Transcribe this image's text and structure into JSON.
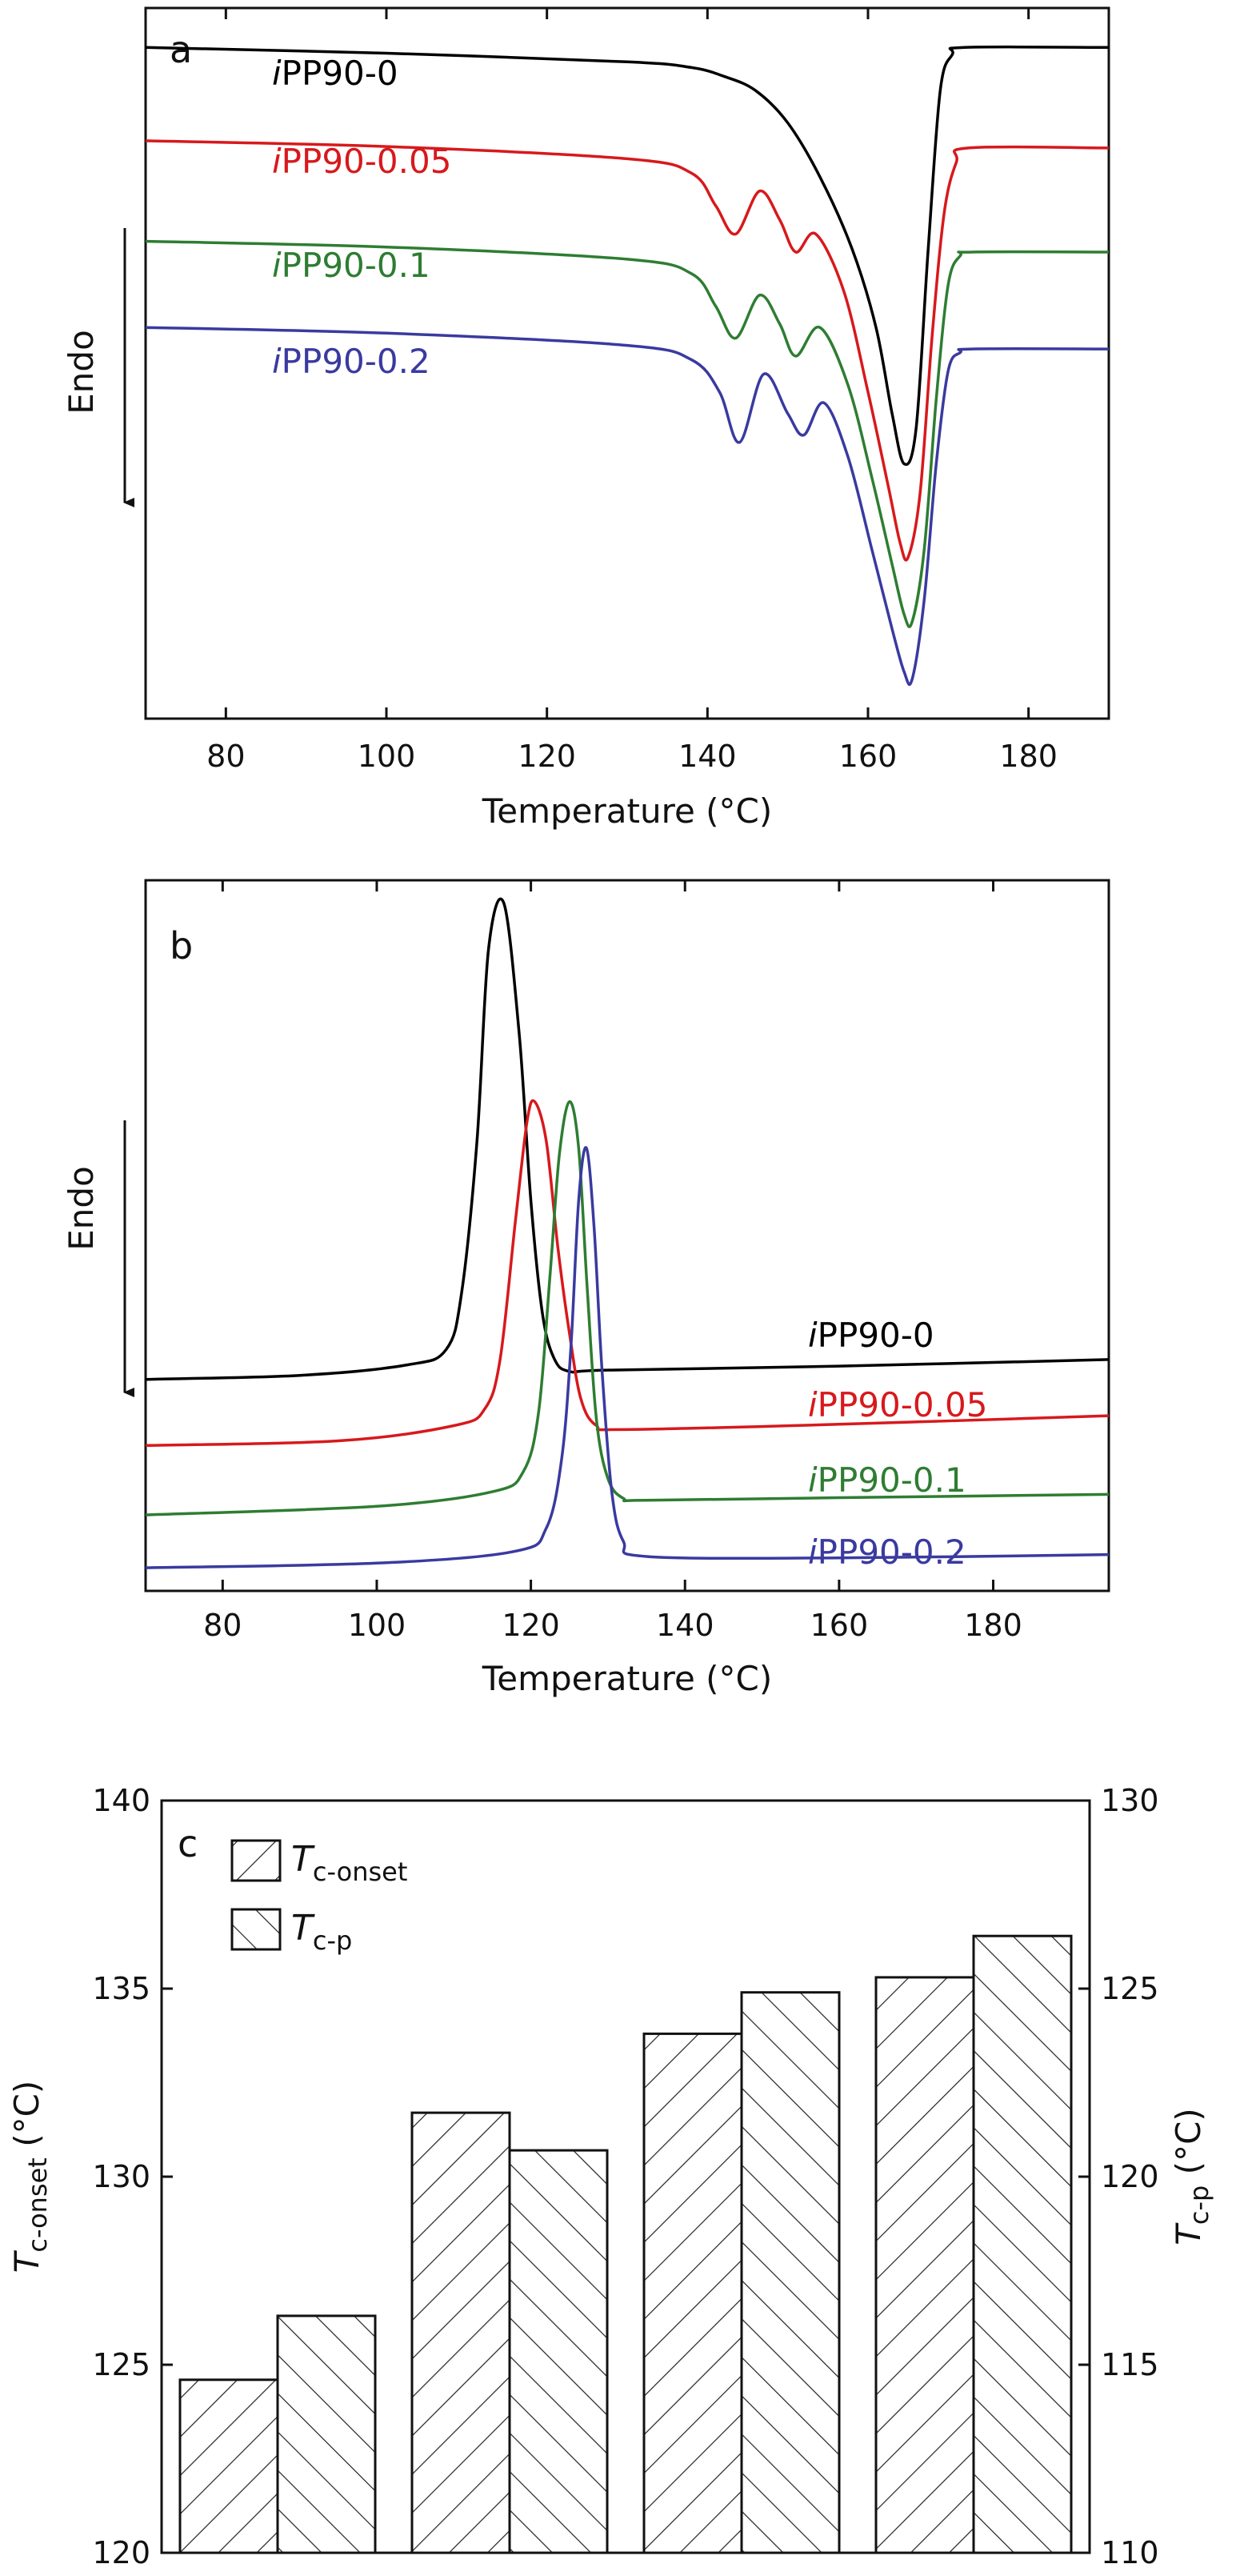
{
  "chart_data": [
    {
      "panel": "a",
      "type": "line",
      "xlabel": "Temperature (°C)",
      "ylabel": "Endo",
      "xlim": [
        70,
        190
      ],
      "xticks": [
        80,
        100,
        120,
        140,
        160,
        180
      ],
      "y_axis_ticks_shown": false,
      "series": [
        {
          "name_prefix": "i",
          "name": "PP90-0",
          "color": "#000000",
          "x": [
            70,
            100,
            130,
            138,
            142,
            146,
            150,
            154,
            158,
            161,
            163,
            164.5,
            166,
            167.5,
            169,
            170.5,
            172,
            190
          ],
          "y": [
            0.0,
            -0.08,
            -0.2,
            -0.28,
            -0.4,
            -0.6,
            -1.05,
            -1.8,
            -2.8,
            -3.9,
            -5.1,
            -5.8,
            -5.3,
            -2.8,
            -0.6,
            -0.1,
            0.0,
            0.0
          ]
        },
        {
          "name_prefix": "i",
          "name": "PP90-0.05",
          "color": "#d7191c",
          "x": [
            70,
            100,
            130,
            138,
            141,
            143.5,
            146.5,
            149,
            151,
            153.5,
            157,
            160,
            162.5,
            164,
            165,
            166.5,
            168,
            169.5,
            171,
            172.5,
            190
          ],
          "y": [
            -1.3,
            -1.38,
            -1.55,
            -1.75,
            -2.2,
            -2.6,
            -2.0,
            -2.4,
            -2.85,
            -2.6,
            -3.4,
            -4.8,
            -6.1,
            -6.9,
            -7.1,
            -6.2,
            -4.0,
            -2.3,
            -1.6,
            -1.4,
            -1.4
          ]
        },
        {
          "name_prefix": "i",
          "name": "PP90-0.1",
          "color": "#2e7d32",
          "x": [
            70,
            100,
            130,
            138,
            141,
            143.5,
            146.5,
            149,
            151,
            154,
            157.5,
            160.5,
            163,
            164.5,
            165.5,
            167,
            168.5,
            170,
            171.5,
            173,
            190
          ],
          "y": [
            -2.7,
            -2.78,
            -2.95,
            -3.15,
            -3.6,
            -4.05,
            -3.45,
            -3.85,
            -4.3,
            -3.9,
            -4.7,
            -6.0,
            -7.2,
            -7.9,
            -8.0,
            -7.0,
            -4.9,
            -3.3,
            -2.9,
            -2.85,
            -2.85
          ]
        },
        {
          "name_prefix": "i",
          "name": "PP90-0.2",
          "color": "#3a3aa0",
          "x": [
            70,
            100,
            130,
            138,
            141.5,
            144,
            147,
            150,
            152,
            154.5,
            157.5,
            160.5,
            163,
            164.5,
            165.5,
            167,
            168.5,
            170,
            171.5,
            173,
            190
          ],
          "y": [
            -3.9,
            -3.98,
            -4.15,
            -4.35,
            -4.8,
            -5.5,
            -4.55,
            -5.1,
            -5.4,
            -4.95,
            -5.7,
            -7.0,
            -8.1,
            -8.7,
            -8.8,
            -7.7,
            -5.8,
            -4.5,
            -4.25,
            -4.2,
            -4.2
          ]
        }
      ]
    },
    {
      "panel": "b",
      "type": "line",
      "xlabel": "Temperature (°C)",
      "ylabel": "Endo",
      "xlim": [
        70,
        195
      ],
      "xticks": [
        80,
        100,
        120,
        140,
        160,
        180
      ],
      "y_axis_ticks_shown": false,
      "series": [
        {
          "name_prefix": "i",
          "name": "PP90-0",
          "color": "#000000",
          "x": [
            70,
            90,
            104,
            109,
            111,
            113,
            114.5,
            116.5,
            118.5,
            120,
            121.5,
            123,
            125,
            130,
            160,
            195
          ],
          "y": [
            0.0,
            0.06,
            0.22,
            0.45,
            1.3,
            3.6,
            6.5,
            7.2,
            5.2,
            2.7,
            1.0,
            0.32,
            0.12,
            0.14,
            0.2,
            0.3
          ]
        },
        {
          "name_prefix": "i",
          "name": "PP90-0.05",
          "color": "#d7191c",
          "x": [
            70,
            95,
            110,
            114,
            116,
            118,
            119.5,
            120.5,
            122,
            123.5,
            125,
            126.5,
            128.5,
            132,
            160,
            195
          ],
          "y": [
            -1.0,
            -0.93,
            -0.7,
            -0.45,
            0.3,
            2.4,
            3.9,
            4.2,
            3.6,
            2.0,
            0.7,
            -0.3,
            -0.7,
            -0.76,
            -0.68,
            -0.55
          ]
        },
        {
          "name_prefix": "i",
          "name": "PP90-0.1",
          "color": "#2e7d32",
          "x": [
            70,
            100,
            115,
            119,
            121,
            122.5,
            123.7,
            125,
            126.2,
            127.3,
            128.5,
            130,
            132,
            135,
            160,
            195
          ],
          "y": [
            -2.05,
            -1.92,
            -1.7,
            -1.4,
            -0.5,
            1.6,
            3.4,
            4.2,
            3.5,
            1.4,
            -0.6,
            -1.5,
            -1.8,
            -1.83,
            -1.79,
            -1.74
          ]
        },
        {
          "name_prefix": "i",
          "name": "PP90-0.2",
          "color": "#3a3aa0",
          "x": [
            70,
            100,
            118,
            122,
            124,
            125.2,
            126.2,
            127.2,
            128.2,
            129.2,
            130.5,
            132,
            135,
            160,
            195
          ],
          "y": [
            -2.85,
            -2.78,
            -2.6,
            -2.25,
            -1.2,
            0.5,
            2.7,
            3.5,
            2.3,
            0.2,
            -1.7,
            -2.45,
            -2.68,
            -2.7,
            -2.65
          ]
        }
      ]
    },
    {
      "panel": "c",
      "type": "bar",
      "categories": [
        "PP90-0",
        "PP90-0.05",
        "PP90-0.1",
        "PP90-0.2"
      ],
      "category_prefix": "i",
      "y_left": {
        "label_main": "T",
        "label_sub": "c-onset",
        "label_unit": " (°C)",
        "lim": [
          120,
          140
        ],
        "ticks": [
          120,
          125,
          130,
          135,
          140
        ]
      },
      "y_right": {
        "label_main": "T",
        "label_sub": "c-p",
        "label_unit": " (°C)",
        "lim": [
          110,
          130
        ],
        "ticks": [
          110,
          115,
          120,
          125,
          130
        ]
      },
      "legend_position": "top-left",
      "series": [
        {
          "name_main": "T",
          "name_sub": "c-onset",
          "axis": "left",
          "hatch": "forward",
          "values": [
            124.6,
            131.7,
            133.8,
            135.3
          ]
        },
        {
          "name_main": "T",
          "name_sub": "c-p",
          "axis": "right",
          "hatch": "backward",
          "values": [
            116.3,
            120.7,
            124.9,
            126.4
          ]
        }
      ]
    }
  ]
}
